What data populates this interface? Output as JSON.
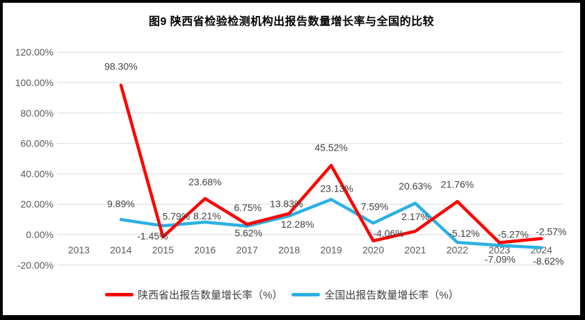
{
  "title": "图9 陕西省检验检测机构出报告数量增长率与全国的比较",
  "colors": {
    "shaanxi_line": "#FE0000",
    "national_line": "#2CB0E3",
    "gridline": "#D9D9D9",
    "tick_text": "#595959",
    "label_text": "#404040",
    "border": "#000000",
    "background": "#FFFFFF"
  },
  "legend": {
    "items": [
      {
        "key": "shaanxi",
        "label": "陕西省出报告数量增长率（%）"
      },
      {
        "key": "national",
        "label": "全国出报告数量增长率（%）"
      }
    ]
  },
  "chart_data": {
    "type": "line",
    "title": "图9 陕西省检验检测机构出报告数量增长率与全国的比较",
    "categories": [
      "2013",
      "2014",
      "2015",
      "2016",
      "2017",
      "2018",
      "2019",
      "2020",
      "2021",
      "2022",
      "2023",
      "2024"
    ],
    "series": [
      {
        "name": "陕西省出报告数量增长率（%）",
        "key": "shaanxi",
        "color": "#FE0000",
        "values": [
          null,
          98.3,
          -1.45,
          23.68,
          6.75,
          13.83,
          45.52,
          -4.06,
          2.17,
          21.76,
          -5.27,
          -2.57
        ]
      },
      {
        "name": "全国出报告数量增长率（%）",
        "key": "national",
        "color": "#2CB0E3",
        "values": [
          null,
          9.89,
          5.79,
          8.21,
          5.62,
          12.28,
          23.13,
          7.59,
          20.63,
          -5.12,
          -7.09,
          -8.62
        ]
      }
    ],
    "xlabel": "",
    "ylabel": "",
    "ylim": [
      -20,
      120
    ],
    "ytick_step": 20,
    "yticklabels": [
      "-20.00%",
      "0.00%",
      "20.00%",
      "40.00%",
      "60.00%",
      "80.00%",
      "100.00%",
      "120.00%"
    ],
    "grid": "horizontal",
    "legend_position": "bottom",
    "value_label_format": "0.00%",
    "marker": "none"
  }
}
